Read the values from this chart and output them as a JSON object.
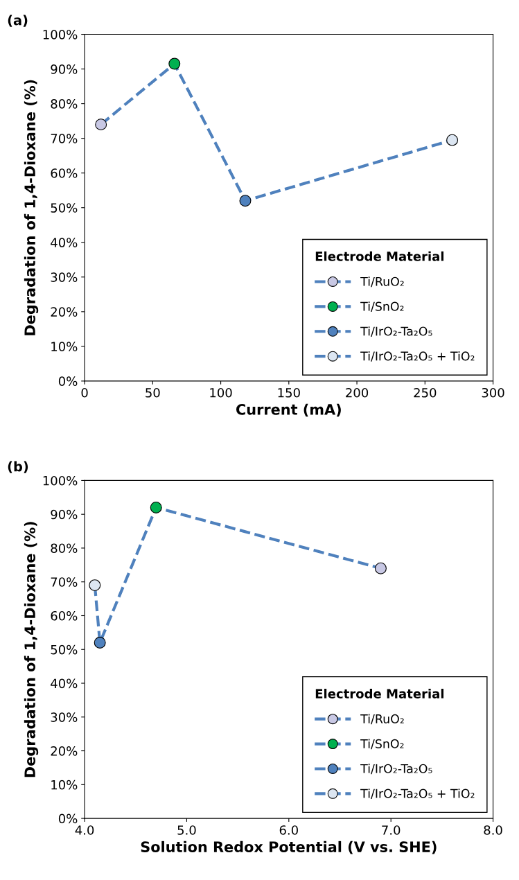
{
  "chart_data": [
    {
      "type": "scatter",
      "title": "(a)",
      "xlabel": "Current (mA)",
      "ylabel": "Degradation of 1,4-Dioxane (%)",
      "legend_title": "Electrode Material",
      "legend": "bottom right",
      "marker": "circle",
      "xlim": [
        0,
        300
      ],
      "xticks": [
        0,
        50,
        100,
        150,
        200,
        250,
        300
      ],
      "ylim": [
        0,
        100
      ],
      "yticks": [
        {
          "value": 0,
          "label": "0%"
        },
        {
          "value": 10,
          "label": "10%"
        },
        {
          "value": 20,
          "label": "20%"
        },
        {
          "value": 30,
          "label": "30%"
        },
        {
          "value": 40,
          "label": "40%"
        },
        {
          "value": 50,
          "label": "50%"
        },
        {
          "value": 60,
          "label": "60%"
        },
        {
          "value": 70,
          "label": "70%"
        },
        {
          "value": 80,
          "label": "80%"
        },
        {
          "value": 90,
          "label": "90%"
        },
        {
          "value": 100,
          "label": "100%"
        }
      ],
      "series": [
        {
          "type": "line",
          "marker": "none",
          "line_style": "dashed",
          "color": "#4f81bd",
          "x": [
            12,
            66,
            118,
            270
          ],
          "values": [
            74,
            91.5,
            52,
            69.5
          ]
        },
        {
          "name": "Ti/RuO₂",
          "color": "#c8c8e4",
          "x": [
            12
          ],
          "values": [
            74
          ]
        },
        {
          "name": "Ti/SnO₂",
          "color": "#00b050",
          "x": [
            66
          ],
          "values": [
            91.5
          ]
        },
        {
          "name": "Ti/IrO₂-Ta₂O₅",
          "color": "#4f81bd",
          "x": [
            118
          ],
          "values": [
            52
          ]
        },
        {
          "name": "Ti/IrO₂-Ta₂O₅ + TiO₂",
          "color": "#dce6f2",
          "x": [
            270
          ],
          "values": [
            69.5
          ]
        }
      ]
    },
    {
      "type": "scatter",
      "title": "(b)",
      "xlabel": "Solution Redox Potential (V vs. SHE)",
      "ylabel": "Degradation of 1,4-Dioxane (%)",
      "legend_title": "Electrode Material",
      "legend": "bottom right",
      "marker": "circle",
      "xlim": [
        4,
        8
      ],
      "xticks": [
        {
          "value": 4,
          "label": "4.0"
        },
        {
          "value": 5,
          "label": "5.0"
        },
        {
          "value": 6,
          "label": "6.0"
        },
        {
          "value": 7,
          "label": "7.0"
        },
        {
          "value": 8,
          "label": "8.0"
        }
      ],
      "ylim": [
        0,
        100
      ],
      "yticks": [
        {
          "value": 0,
          "label": "0%"
        },
        {
          "value": 10,
          "label": "10%"
        },
        {
          "value": 20,
          "label": "20%"
        },
        {
          "value": 30,
          "label": "30%"
        },
        {
          "value": 40,
          "label": "40%"
        },
        {
          "value": 50,
          "label": "50%"
        },
        {
          "value": 60,
          "label": "60%"
        },
        {
          "value": 70,
          "label": "70%"
        },
        {
          "value": 80,
          "label": "80%"
        },
        {
          "value": 90,
          "label": "90%"
        },
        {
          "value": 100,
          "label": "100%"
        }
      ],
      "series": [
        {
          "type": "line",
          "marker": "none",
          "line_style": "dashed",
          "color": "#4f81bd",
          "x": [
            4.1,
            4.15,
            4.7,
            6.9
          ],
          "values": [
            69,
            52,
            92,
            74
          ]
        },
        {
          "name": "Ti/RuO₂",
          "color": "#c8c8e4",
          "x": [
            6.9
          ],
          "values": [
            74
          ]
        },
        {
          "name": "Ti/SnO₂",
          "color": "#00b050",
          "x": [
            4.7
          ],
          "values": [
            92
          ]
        },
        {
          "name": "Ti/IrO₂-Ta₂O₅",
          "color": "#4f81bd",
          "x": [
            4.15
          ],
          "values": [
            52
          ]
        },
        {
          "name": "Ti/IrO₂-Ta₂O₅ + TiO₂",
          "color": "#dce6f2",
          "x": [
            4.1
          ],
          "values": [
            69
          ]
        }
      ]
    }
  ]
}
